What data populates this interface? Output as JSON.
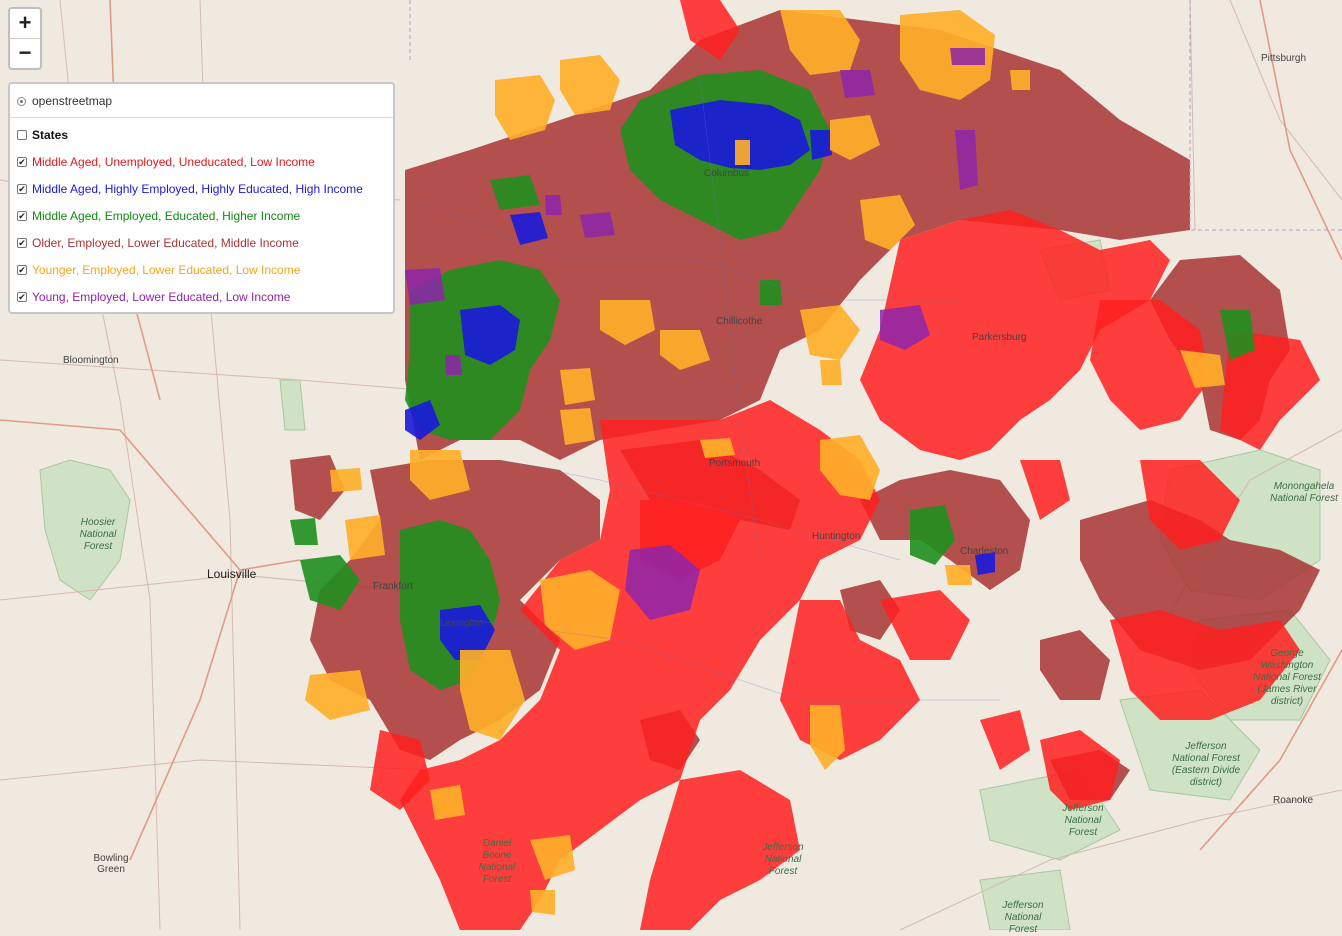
{
  "zoom": {
    "in_label": "+",
    "out_label": "−"
  },
  "layers": {
    "base": {
      "label": "openstreetmap",
      "selected": true
    },
    "overlays": [
      {
        "label": "States",
        "checked": false,
        "color": "#111111"
      },
      {
        "label": "Middle Aged, Unemployed, Uneducated, Low Income",
        "checked": true,
        "color": "#e31a1c"
      },
      {
        "label": "Middle Aged, Highly Employed, Highly Educated, High Income",
        "checked": true,
        "color": "#1a1adc"
      },
      {
        "label": "Middle Aged, Employed, Educated, Higher Income",
        "checked": true,
        "color": "#138a13"
      },
      {
        "label": "Older, Employed, Lower Educated, Middle Income",
        "checked": true,
        "color": "#a83434"
      },
      {
        "label": "Younger, Employed, Lower Educated, Low Income",
        "checked": true,
        "color": "#f5a51c"
      },
      {
        "label": "Young, Employed, Lower Educated, Low Income",
        "checked": true,
        "color": "#8e24aa"
      }
    ]
  },
  "map_labels": {
    "pittsburgh": "Pittsburgh",
    "bloomington": "Bloomington",
    "louisville": "Louisville",
    "chillicothe": "Chillicothe",
    "parkersburg": "Parkersburg",
    "portsmouth": "Portsmouth",
    "huntington": "Huntington",
    "charleston": "Charleston",
    "frankfort": "Frankfort",
    "lexington": "Lexington",
    "columbus": "Columbus",
    "roanoke": "Roanoke",
    "bowling_green": "Bowling Green",
    "hoosier": "Hoosier National Forest",
    "monongahela": "Monongahela National Forest",
    "george_washington": "George Washington National Forest (James River district)",
    "jefferson_eastern": "Jefferson National Forest (Eastern Divide district)",
    "jefferson_1": "Jefferson National Forest",
    "jefferson_2": "Jefferson National Forest",
    "jefferson_3": "Jefferson National Forest",
    "daniel_boone": "Daniel Boone National Forest"
  }
}
